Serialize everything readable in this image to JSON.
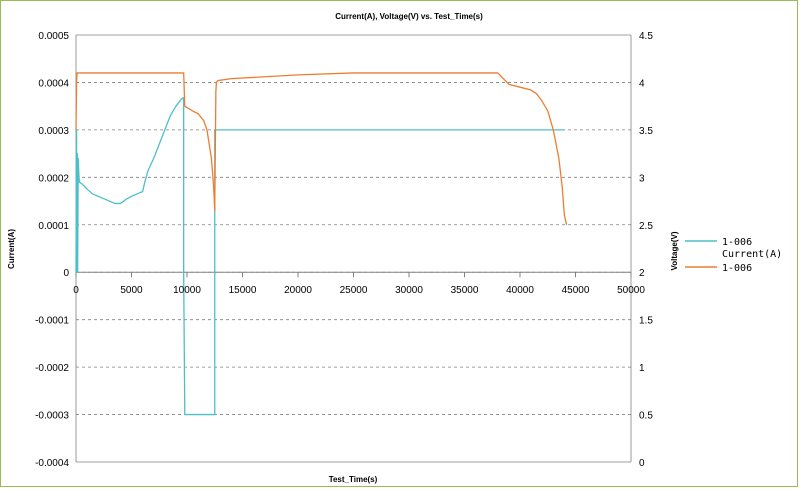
{
  "chart_data": {
    "type": "line",
    "title": "Current(A), Voltage(V) vs. Test_Time(s)",
    "xlabel": "Test_Time(s)",
    "ylabel_left": "Current(A)",
    "ylabel_right": "Voltage(V)",
    "xlim": [
      0,
      50000
    ],
    "ylim_left": [
      -0.0004,
      0.0005
    ],
    "ylim_right": [
      0,
      4.5
    ],
    "x_ticks": [
      "0",
      "5000",
      "10000",
      "15000",
      "20000",
      "25000",
      "30000",
      "35000",
      "40000",
      "45000",
      "50000"
    ],
    "y_left_ticks": [
      "0.0005",
      "0.0004",
      "0.0003",
      "0.0002",
      "0.0001",
      "0",
      "-0.0001",
      "-0.0002",
      "-0.0003",
      "-0.0004"
    ],
    "y_right_ticks": [
      "4.5",
      "4",
      "3.5",
      "3",
      "2.5",
      "2",
      "1.5",
      "1",
      "0.5",
      "0"
    ],
    "grid": "horizontal dashed",
    "legend_position": "right",
    "series": [
      {
        "name": "1-006 Current(A)",
        "legend_lines": [
          "1-006",
          "Current(A)"
        ],
        "axis": "left",
        "color": "#4bc0c8",
        "x": [
          0,
          50,
          80,
          120,
          150,
          200,
          250,
          300,
          600,
          1000,
          1500,
          2000,
          2500,
          3000,
          3500,
          4000,
          4300,
          4600,
          5000,
          5500,
          6000,
          6200,
          6500,
          7000,
          7500,
          8000,
          8500,
          9000,
          9500,
          9700,
          9700,
          9800,
          12500,
          12500,
          12600,
          20000,
          30000,
          40000,
          44000
        ],
        "y": [
          0,
          0.0003,
          0,
          0.00025,
          0,
          0.00024,
          0.00021,
          0.00019,
          0.000185,
          0.000175,
          0.000165,
          0.00016,
          0.000155,
          0.00015,
          0.000145,
          0.000145,
          0.00015,
          0.000155,
          0.00016,
          0.000165,
          0.00017,
          0.00019,
          0.000215,
          0.00024,
          0.00027,
          0.0003,
          0.00033,
          0.00035,
          0.000365,
          0.000368,
          0,
          -0.0003,
          -0.0003,
          0.0003,
          0.0003,
          0.0003,
          0.0003,
          0.0003,
          0.0003
        ]
      },
      {
        "name": "1-006",
        "legend_lines": [
          "1-006"
        ],
        "axis": "right",
        "color": "#ed7d31",
        "x": [
          0,
          50,
          100,
          200,
          400,
          800,
          2000,
          5000,
          9000,
          9500,
          9700,
          9800,
          10500,
          11000,
          11500,
          11800,
          12000,
          12200,
          12400,
          12500,
          12600,
          12650,
          12800,
          14000,
          20000,
          25000,
          30000,
          35000,
          38000,
          39000,
          40000,
          41000,
          41500,
          42000,
          42500,
          43000,
          43500,
          43800,
          44000,
          44200
        ],
        "y": [
          3.5,
          4.0,
          4.1,
          4.1,
          4.1,
          4.1,
          4.1,
          4.1,
          4.1,
          4.1,
          4.1,
          3.75,
          3.7,
          3.67,
          3.6,
          3.5,
          3.35,
          3.2,
          2.9,
          2.65,
          3.9,
          4.0,
          4.02,
          4.04,
          4.08,
          4.1,
          4.1,
          4.1,
          4.1,
          3.98,
          3.95,
          3.92,
          3.88,
          3.8,
          3.7,
          3.5,
          3.2,
          2.9,
          2.6,
          2.5
        ]
      }
    ]
  }
}
